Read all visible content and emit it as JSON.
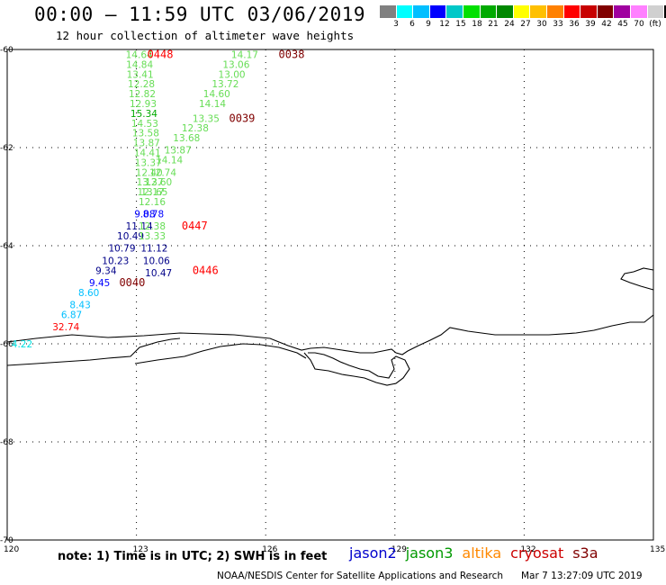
{
  "header": {
    "title": "00:00 – 11:59 UTC 03/06/2019",
    "subtitle": "12 hour collection of altimeter wave heights"
  },
  "legend": {
    "colors": [
      "#808080",
      "#00ffff",
      "#00bfff",
      "#0000ff",
      "#00c8c8",
      "#00e000",
      "#00aa00",
      "#008800",
      "#ffff00",
      "#ffc000",
      "#ff8000",
      "#ff0000",
      "#c80000",
      "#800000",
      "#a000a0",
      "#ff80ff",
      "#d0d0d0",
      "#000000"
    ],
    "labels": [
      "3",
      "6",
      "9",
      "12",
      "15",
      "18",
      "21",
      "24",
      "27",
      "30",
      "33",
      "36",
      "39",
      "42",
      "45",
      "70",
      "(ft)"
    ]
  },
  "chart_data": {
    "type": "scatter",
    "title": "00:00 – 11:59 UTC 03/06/2019",
    "subtitle": "12 hour collection of altimeter wave heights",
    "x_axis": {
      "ticks": [
        "120",
        "123",
        "126",
        "129",
        "132",
        "135"
      ],
      "range": [
        120,
        135
      ]
    },
    "y_axis": {
      "ticks": [
        "-60",
        "-62",
        "-64",
        "-66",
        "-68",
        "-70"
      ],
      "range": [
        -70,
        -60
      ]
    },
    "passes": [
      {
        "time": "0448",
        "color": "#ff0000",
        "lon": 123.25,
        "lat": -60.1
      },
      {
        "time": "0038",
        "color": "#800000",
        "lon": 126.3,
        "lat": -60.1
      },
      {
        "time": "0039",
        "color": "#800000",
        "lon": 125.15,
        "lat": -61.4
      },
      {
        "time": "0447",
        "color": "#ff0000",
        "lon": 124.05,
        "lat": -63.6
      },
      {
        "time": "0446",
        "color": "#ff0000",
        "lon": 124.3,
        "lat": -64.5
      },
      {
        "time": "0040",
        "color": "#800000",
        "lon": 122.6,
        "lat": -64.75
      }
    ],
    "points": [
      {
        "label": "14.64",
        "color": "#66dd55",
        "lon": 122.75,
        "lat": -60.1
      },
      {
        "label": "14.84",
        "color": "#66dd55",
        "lon": 122.76,
        "lat": -60.3
      },
      {
        "label": "13.41",
        "color": "#66dd55",
        "lon": 122.77,
        "lat": -60.5
      },
      {
        "label": "12.28",
        "color": "#66dd55",
        "lon": 122.8,
        "lat": -60.7
      },
      {
        "label": "12.82",
        "color": "#66dd55",
        "lon": 122.82,
        "lat": -60.9
      },
      {
        "label": "12.93",
        "color": "#66dd55",
        "lon": 122.84,
        "lat": -61.1
      },
      {
        "label": "15.34",
        "color": "#00aa00",
        "lon": 122.86,
        "lat": -61.3
      },
      {
        "label": "14.53",
        "color": "#66dd55",
        "lon": 122.88,
        "lat": -61.5
      },
      {
        "label": "13.58",
        "color": "#66dd55",
        "lon": 122.9,
        "lat": -61.7
      },
      {
        "label": "13.87",
        "color": "#66dd55",
        "lon": 122.92,
        "lat": -61.9
      },
      {
        "label": "14.41",
        "color": "#66dd55",
        "lon": 122.94,
        "lat": -62.1
      },
      {
        "label": "13.37",
        "color": "#66dd55",
        "lon": 122.96,
        "lat": -62.3
      },
      {
        "label": "12.40",
        "color": "#66dd55",
        "lon": 122.98,
        "lat": -62.5
      },
      {
        "label": "13.37",
        "color": "#66dd55",
        "lon": 123.0,
        "lat": -62.7
      },
      {
        "label": "12.17",
        "color": "#66dd55",
        "lon": 123.02,
        "lat": -62.9
      },
      {
        "label": "9.08",
        "color": "#0000ff",
        "lon": 122.95,
        "lat": -63.35
      },
      {
        "label": "11.14",
        "color": "#000088",
        "lon": 122.75,
        "lat": -63.6
      },
      {
        "label": "10.49",
        "color": "#000088",
        "lon": 122.55,
        "lat": -63.8
      },
      {
        "label": "10.79",
        "color": "#000088",
        "lon": 122.35,
        "lat": -64.05
      },
      {
        "label": "10.23",
        "color": "#000088",
        "lon": 122.2,
        "lat": -64.3
      },
      {
        "label": "9.34",
        "color": "#000088",
        "lon": 122.05,
        "lat": -64.5
      },
      {
        "label": "9.45",
        "color": "#0000ff",
        "lon": 121.9,
        "lat": -64.75
      },
      {
        "label": "8.60",
        "color": "#00bfff",
        "lon": 121.65,
        "lat": -64.95
      },
      {
        "label": "8.43",
        "color": "#00bfff",
        "lon": 121.45,
        "lat": -65.2
      },
      {
        "label": "6.87",
        "color": "#00bfff",
        "lon": 121.25,
        "lat": -65.4
      },
      {
        "label": "32.74",
        "color": "#ff0000",
        "lon": 121.05,
        "lat": -65.65
      },
      {
        "label": "4.22",
        "color": "#00e0e0",
        "lon": 120.1,
        "lat": -66.0
      },
      {
        "label": "14.17",
        "color": "#66dd55",
        "lon": 125.2,
        "lat": -60.1
      },
      {
        "label": "13.06",
        "color": "#66dd55",
        "lon": 125.0,
        "lat": -60.3
      },
      {
        "label": "13.00",
        "color": "#66dd55",
        "lon": 124.9,
        "lat": -60.5
      },
      {
        "label": "13.72",
        "color": "#66dd55",
        "lon": 124.75,
        "lat": -60.7
      },
      {
        "label": "14.60",
        "color": "#66dd55",
        "lon": 124.55,
        "lat": -60.9
      },
      {
        "label": "14.14",
        "color": "#66dd55",
        "lon": 124.45,
        "lat": -61.1
      },
      {
        "label": "13.35",
        "color": "#66dd55",
        "lon": 124.3,
        "lat": -61.4
      },
      {
        "label": "12.38",
        "color": "#66dd55",
        "lon": 124.05,
        "lat": -61.6
      },
      {
        "label": "13.68",
        "color": "#66dd55",
        "lon": 123.85,
        "lat": -61.8
      },
      {
        "label": "13.87",
        "color": "#66dd55",
        "lon": 123.65,
        "lat": -62.05
      },
      {
        "label": "14.14",
        "color": "#66dd55",
        "lon": 123.45,
        "lat": -62.25
      },
      {
        "label": "12.74",
        "color": "#66dd55",
        "lon": 123.3,
        "lat": -62.5
      },
      {
        "label": "12.60",
        "color": "#66dd55",
        "lon": 123.2,
        "lat": -62.7
      },
      {
        "label": "13.65",
        "color": "#66dd55",
        "lon": 123.1,
        "lat": -62.9
      },
      {
        "label": "12.16",
        "color": "#66dd55",
        "lon": 123.05,
        "lat": -63.1
      },
      {
        "label": "8.78",
        "color": "#0000ff",
        "lon": 123.15,
        "lat": -63.35
      },
      {
        "label": "12.38",
        "color": "#66dd55",
        "lon": 123.05,
        "lat": -63.6
      },
      {
        "label": "13.33",
        "color": "#66dd55",
        "lon": 123.05,
        "lat": -63.8
      },
      {
        "label": "11.12",
        "color": "#000088",
        "lon": 123.1,
        "lat": -64.05
      },
      {
        "label": "10.06",
        "color": "#000088",
        "lon": 123.15,
        "lat": -64.3
      },
      {
        "label": "10.47",
        "color": "#000088",
        "lon": 123.2,
        "lat": -64.55
      }
    ]
  },
  "footer_note": "note: 1) Time is in UTC; 2) SWH is in feet",
  "satellites": [
    {
      "name": "jason2",
      "color": "#0000cc"
    },
    {
      "name": "jason3",
      "color": "#009900"
    },
    {
      "name": "altika",
      "color": "#ff8800"
    },
    {
      "name": "cryosat",
      "color": "#cc0000"
    },
    {
      "name": "s3a",
      "color": "#800000"
    }
  ],
  "credits": {
    "org": "NOAA/NESDIS Center for Satellite Applications and Research",
    "timestamp": "Mar  7 13:27:09 UTC 2019"
  }
}
